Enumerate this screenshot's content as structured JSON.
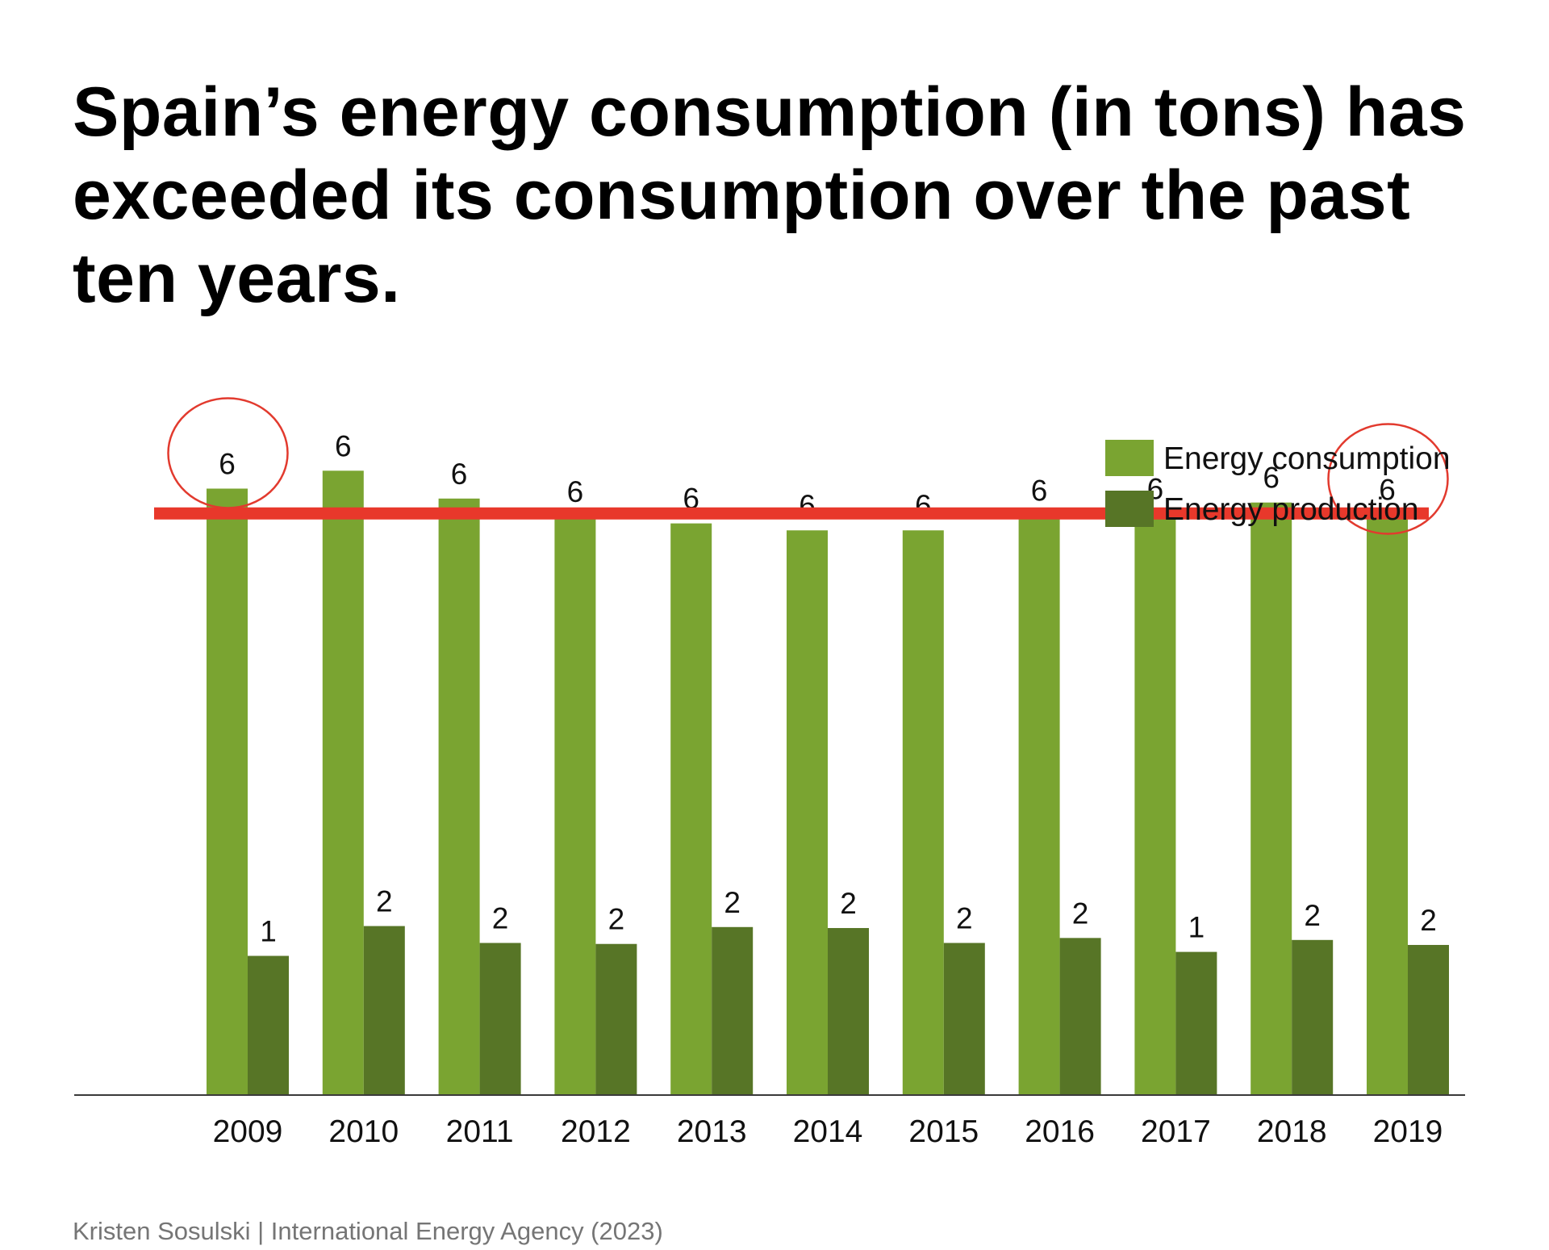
{
  "chart_data": {
    "type": "bar",
    "title": "Spain’s energy consumption (in tons) has exceeded its consumption over the past ten years.",
    "categories": [
      "2009",
      "2010",
      "2011",
      "2012",
      "2013",
      "2014",
      "2015",
      "2016",
      "2017",
      "2018",
      "2019"
    ],
    "series": [
      {
        "name": "Energy consumption",
        "color": "#7aa431",
        "values": [
          6.1,
          6.28,
          6.0,
          5.82,
          5.75,
          5.68,
          5.68,
          5.83,
          5.85,
          5.96,
          5.84
        ],
        "labels": [
          "6",
          "6",
          "6",
          "6",
          "6",
          "6",
          "6",
          "6",
          "6",
          "6",
          "6"
        ]
      },
      {
        "name": "Energy production",
        "color": "#577526",
        "values": [
          1.4,
          1.7,
          1.53,
          1.52,
          1.69,
          1.68,
          1.53,
          1.58,
          1.44,
          1.56,
          1.51
        ],
        "labels": [
          "1",
          "2",
          "2",
          "2",
          "2",
          "2",
          "2",
          "2",
          "1",
          "2",
          "2"
        ]
      }
    ],
    "xlabel": "",
    "ylabel": "",
    "ylim": [
      0,
      7.5
    ],
    "grid": false,
    "legend": "top-right",
    "reference_line": {
      "value": 5.85,
      "color": "#e8382b"
    },
    "highlighted_categories": [
      "2009",
      "2019"
    ],
    "highlight_color": "#e23a2e"
  },
  "footer": {
    "source": "Kristen Sosulski | International Energy Agency (2023)"
  }
}
